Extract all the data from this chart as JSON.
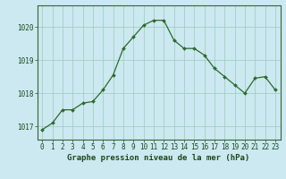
{
  "x": [
    0,
    1,
    2,
    3,
    4,
    5,
    6,
    7,
    8,
    9,
    10,
    11,
    12,
    13,
    14,
    15,
    16,
    17,
    18,
    19,
    20,
    21,
    22,
    23
  ],
  "y": [
    1016.9,
    1017.1,
    1017.5,
    1017.5,
    1017.7,
    1017.75,
    1018.1,
    1018.55,
    1019.35,
    1019.7,
    1020.05,
    1020.2,
    1020.2,
    1019.6,
    1019.35,
    1019.35,
    1019.15,
    1018.75,
    1018.5,
    1018.25,
    1018.0,
    1018.45,
    1018.5,
    1018.1
  ],
  "line_color": "#2d6a2d",
  "marker": "D",
  "marker_size": 2.0,
  "line_width": 0.9,
  "bg_color": "#cce8f0",
  "grid_color": "#99ccbb",
  "ylim": [
    1016.6,
    1020.65
  ],
  "yticks": [
    1017,
    1018,
    1019,
    1020
  ],
  "xlim": [
    -0.5,
    23.5
  ],
  "xticks": [
    0,
    1,
    2,
    3,
    4,
    5,
    6,
    7,
    8,
    9,
    10,
    11,
    12,
    13,
    14,
    15,
    16,
    17,
    18,
    19,
    20,
    21,
    22,
    23
  ],
  "xlabel": "Graphe pression niveau de la mer (hPa)",
  "xlabel_color": "#1a4a1a",
  "xlabel_fontsize": 6.5,
  "tick_fontsize": 5.5,
  "tick_color": "#1a4a1a",
  "axis_color": "#2d6a2d",
  "spine_color": "#336633"
}
